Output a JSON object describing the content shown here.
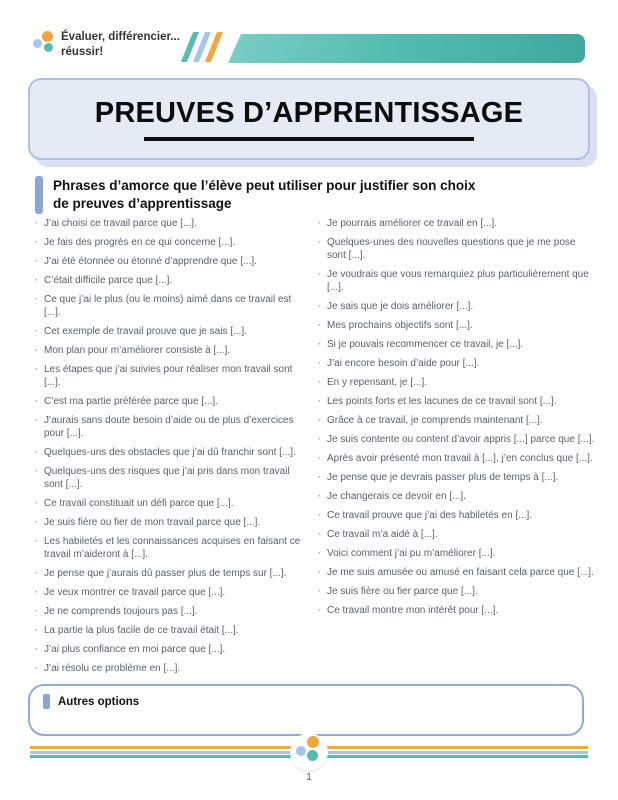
{
  "header": {
    "logo": {
      "line1": "Évaluer, différencier...",
      "line2": "réussir!"
    }
  },
  "title": {
    "text": "PREUVES D’APPRENTISSAGE"
  },
  "subtitle": {
    "line1": "Phrases d’amorce que l’élève peut utiliser pour justifier son choix",
    "line2": "de preuves d’apprentissage"
  },
  "list_bullet": "·",
  "columns": {
    "left": [
      "J’ai choisi ce travail parce que [...].",
      "Je fais des progrès en ce qui concerne [...].",
      "J’ai été étonnée ou étonné d’apprendre que [...].",
      "C’était difficile parce que [...].",
      "Ce que j’ai le plus (ou le moins) aimé dans ce travail est [...].",
      "Cet exemple de travail prouve que je sais [...].",
      "Mon plan pour m’améliorer consiste à [...].",
      "Les étapes que j’ai suivies pour réaliser mon travail sont [...].",
      "C’est ma partie préférée parce que [...].",
      "J’aurais sans doute besoin d’aide ou de plus d’exercices pour [...].",
      "Quelques-uns des obstacles que j’ai dû franchir sont [...].",
      "Quelques-uns des risques que j’ai pris dans mon travail sont [...].",
      "Ce travail constituait un défi parce que [...].",
      "Je suis fière ou fier de mon travail parce que [...].",
      "Les habiletés et les connaissances acquises en faisant ce travail m’aideront à [...].",
      "Je pense que j’aurais dû passer plus de temps sur [...].",
      "Je veux montrer ce travail parce que [...].",
      "Je ne comprends toujours pas [...].",
      "La partie la plus facile de ce travail était [...].",
      "J’ai plus confiance en moi parce que [...].",
      "J’ai résolu ce problème en [...]."
    ],
    "right": [
      "Je pourrais améliorer ce travail en [...].",
      "Quelques-unes des nouvelles questions que je me pose sont [...].",
      "Je voudrais que vous remarquiez plus particulièrement que [...].",
      "Je sais que je dois améliorer [...].",
      "Mes prochains objectifs sont [...].",
      "Si je pouvais recommencer ce travail, je [...].",
      "J’ai encore besoin d’aide pour [...].",
      "En y repensant, je [...].",
      "Les points forts et les lacunes de ce travail sont [...].",
      "Grâce à ce travail, je comprends maintenant [...].",
      "Je suis contente ou content d’avoir appris [...] parce que [...].",
      "Après avoir présenté mon travail à [...], j’en conclus que [...].",
      "Je pense que je devrais passer plus de temps à [...].",
      "Je changerais ce devoir en [...].",
      "Ce travail prouve que j’ai des habiletés en [...].",
      "Ce travail m’a aidé à [...].",
      "Voici comment j’ai pu m’améliorer [...].",
      "Je me suis amusée ou amusé en faisant cela parce que [...].",
      "Je suis fière ou fier parce que [...].",
      "Ce travail montre mon intérêt pour [...]."
    ]
  },
  "other_options": {
    "label": "Autres options"
  },
  "footer": {
    "page_number": "1"
  },
  "colors": {
    "accent": "#8CA6DB",
    "orange": "#F3A63B",
    "lightblue": "#A9C4EC",
    "teal": "#54BCB1"
  }
}
